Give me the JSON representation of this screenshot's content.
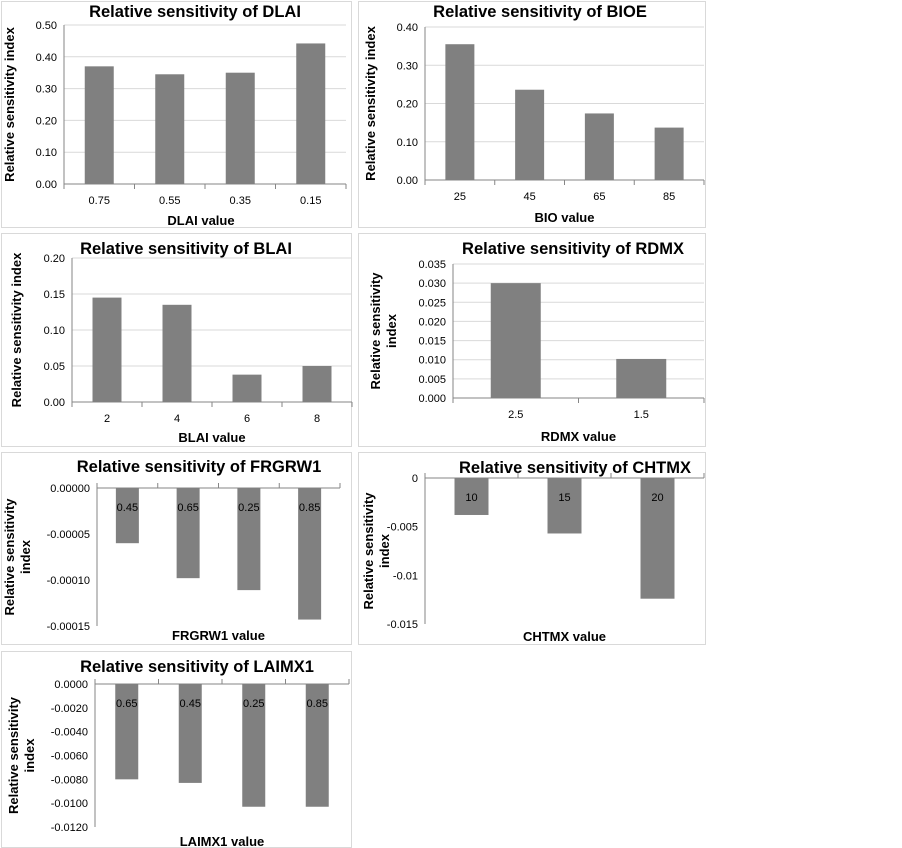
{
  "chart_data": [
    {
      "type": "bar",
      "title": "Relative sensitivity of DLAI",
      "xlabel": "DLAI value",
      "ylabel": "Relative sensitivity index",
      "categories": [
        "0.75",
        "0.55",
        "0.35",
        "0.15"
      ],
      "values": [
        0.37,
        0.345,
        0.35,
        0.442
      ],
      "ylim": [
        0,
        0.5
      ],
      "yticks": [
        "0.00",
        "0.10",
        "0.20",
        "0.30",
        "0.40",
        "0.50"
      ],
      "bar_color": "#808080",
      "grid": true
    },
    {
      "type": "bar",
      "title": "Relative sensitivity of BIOE",
      "xlabel": "BIO value",
      "ylabel": "Relative sensitivity index",
      "categories": [
        "25",
        "45",
        "65",
        "85"
      ],
      "values": [
        0.355,
        0.236,
        0.174,
        0.137
      ],
      "ylim": [
        0,
        0.4
      ],
      "yticks": [
        "0.00",
        "0.10",
        "0.20",
        "0.30",
        "0.40"
      ],
      "bar_color": "#808080",
      "grid": true
    },
    {
      "type": "bar",
      "title": "Relative sensitivity of BLAI",
      "xlabel": "BLAI value",
      "ylabel": "Relative sensitivity index",
      "categories": [
        "2",
        "4",
        "6",
        "8"
      ],
      "values": [
        0.145,
        0.135,
        0.038,
        0.05
      ],
      "ylim": [
        0,
        0.2
      ],
      "yticks": [
        "0.00",
        "0.05",
        "0.10",
        "0.15",
        "0.20"
      ],
      "bar_color": "#808080",
      "grid": true
    },
    {
      "type": "bar",
      "title": "Relative sensitivity of RDMX",
      "xlabel": "RDMX value",
      "ylabel": "Relative sensitivity index",
      "categories": [
        "2.5",
        "1.5"
      ],
      "values": [
        0.03,
        0.0102
      ],
      "ylim": [
        0,
        0.035
      ],
      "yticks": [
        "0.000",
        "0.005",
        "0.010",
        "0.015",
        "0.020",
        "0.025",
        "0.030",
        "0.035"
      ],
      "bar_color": "#808080",
      "grid": true
    },
    {
      "type": "bar",
      "title": "Relative sensitivity of FRGRW1",
      "xlabel": "FRGRW1 value",
      "ylabel": "Relative sensitivity index",
      "categories": [
        "0.45",
        "0.65",
        "0.25",
        "0.85"
      ],
      "values": [
        -6e-05,
        -9.8e-05,
        -0.000111,
        -0.000143
      ],
      "ylim": [
        -0.00015,
        0
      ],
      "yticks": [
        "-0.00015",
        "-0.00010",
        "-0.00005",
        "0.00000"
      ],
      "bar_color": "#808080",
      "grid": false
    },
    {
      "type": "bar",
      "title": "Relative sensitivity of CHTMX",
      "xlabel": "CHTMX value",
      "ylabel": "Relative sensitivity index",
      "categories": [
        "10",
        "15",
        "20"
      ],
      "values": [
        -0.0038,
        -0.0057,
        -0.0124
      ],
      "ylim": [
        -0.015,
        0
      ],
      "yticks": [
        "-0.015",
        "-0.01",
        "-0.005",
        "0"
      ],
      "bar_color": "#808080",
      "grid": false
    },
    {
      "type": "bar",
      "title": "Relative sensitivity of LAIMX1",
      "xlabel": "LAIMX1 value",
      "ylabel": "Relative sensitivity index",
      "categories": [
        "0.65",
        "0.45",
        "0.25",
        "0.85"
      ],
      "values": [
        -0.008,
        -0.0083,
        -0.0103,
        -0.0103
      ],
      "ylim": [
        -0.012,
        0
      ],
      "yticks": [
        "-0.0120",
        "-0.0100",
        "-0.0080",
        "-0.0060",
        "-0.0040",
        "-0.0020",
        "0.0000"
      ],
      "bar_color": "#808080",
      "grid": false
    }
  ]
}
